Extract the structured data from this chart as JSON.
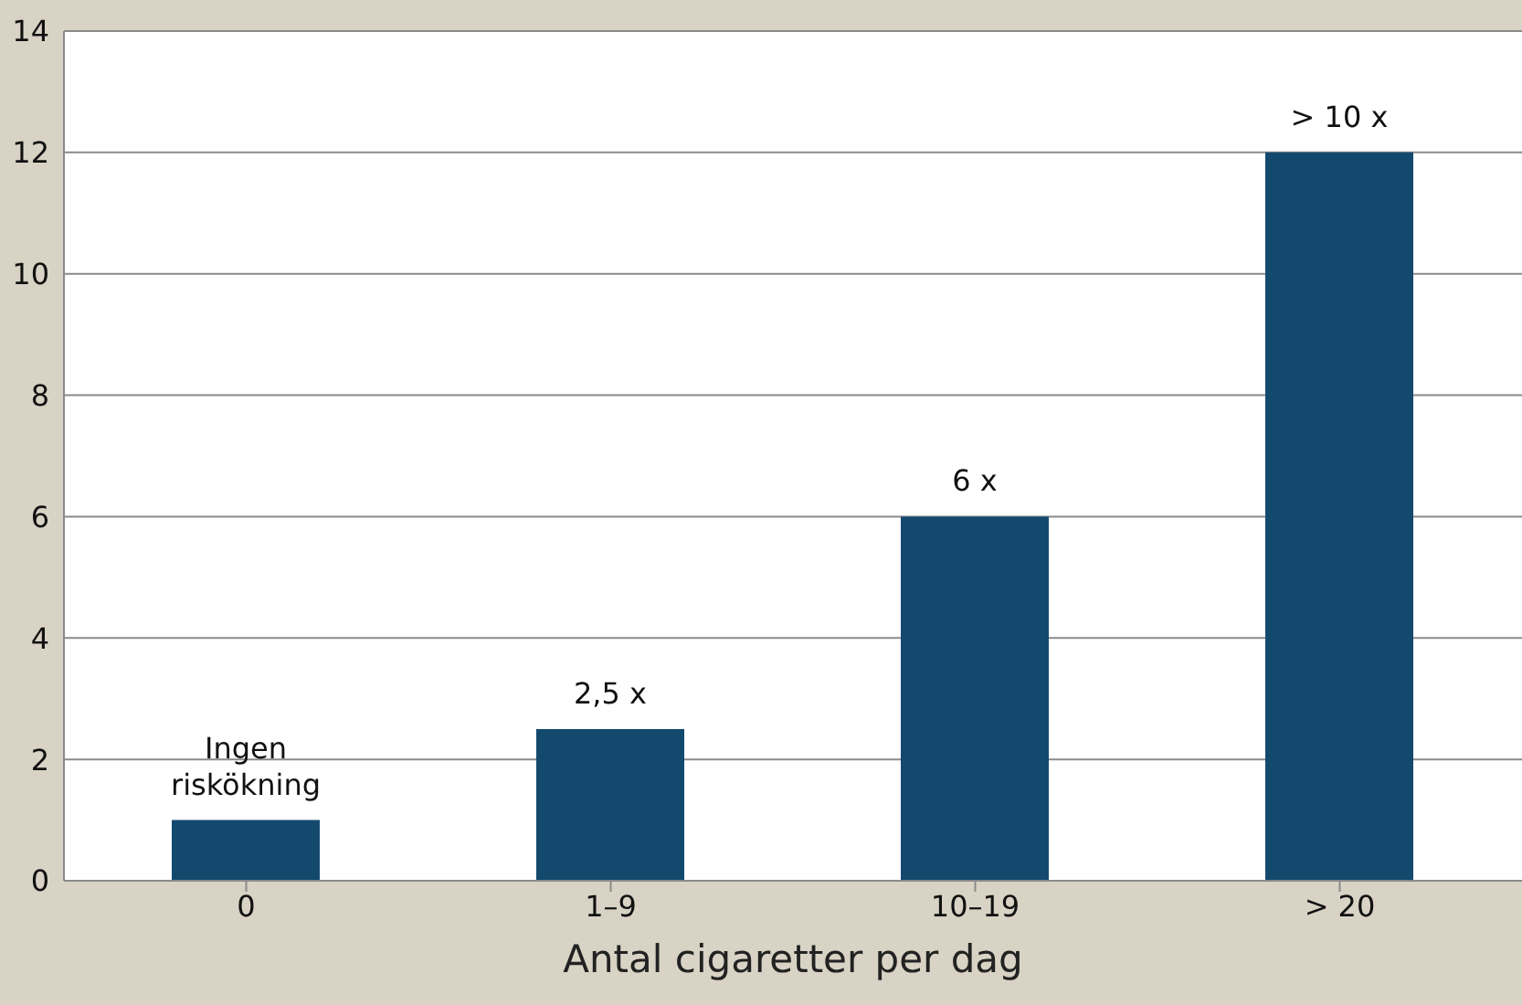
{
  "chart_data": {
    "type": "bar",
    "xlabel": "Antal cigaretter per dag",
    "categories": [
      "0",
      "1–9",
      "10–19",
      "> 20"
    ],
    "values": [
      1,
      2.5,
      6,
      12
    ],
    "value_labels": [
      "Ingen\nriskökning",
      "2,5 x",
      "6 x",
      "> 10 x"
    ],
    "color": "#14496e",
    "ylim": [
      0,
      14
    ],
    "yticks": [
      0,
      2,
      4,
      6,
      8,
      10,
      12,
      14
    ],
    "grid": "y",
    "legend": false
  }
}
